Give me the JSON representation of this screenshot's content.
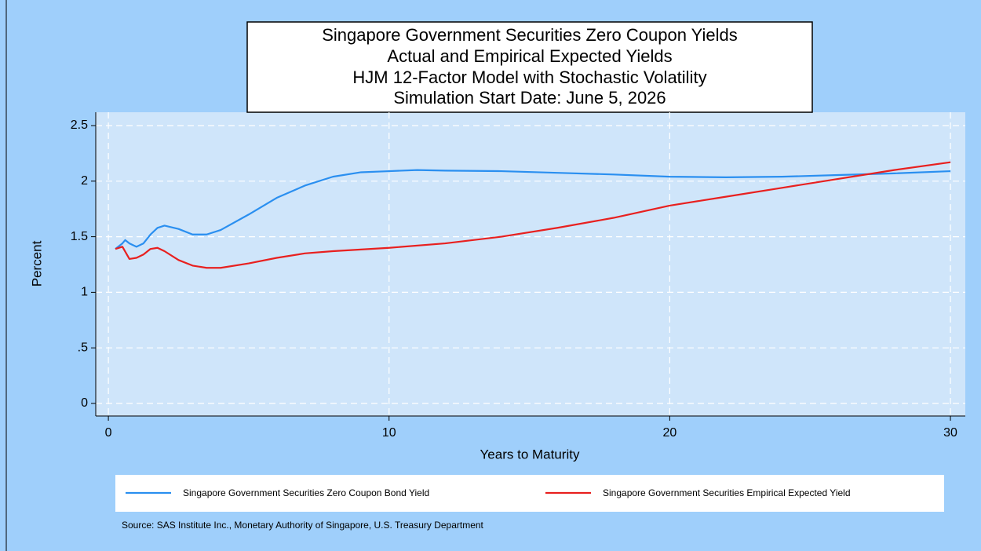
{
  "chart_data": {
    "type": "line",
    "title": [
      "Singapore Government Securities Zero Coupon Yields",
      "Actual and Empirical Expected Yields",
      "HJM 12-Factor Model with Stochastic Volatility",
      "Simulation Start Date: June 5, 2026"
    ],
    "x_label": "Years to Maturity",
    "y_label": "Percent",
    "note": "Source: SAS Institute Inc., Monetary Authority of Singapore, U.S. Treasury Department",
    "xlim": [
      -0.45,
      30.53
    ],
    "ylim": [
      -0.113,
      2.62
    ],
    "xticks": [
      0,
      10,
      20,
      30
    ],
    "yticks": [
      0,
      {
        "value": 0.5,
        "label": ".5"
      },
      1,
      1.5,
      2,
      2.5
    ],
    "grid": true,
    "series": [
      {
        "name": "Singapore Government Securities Zero Coupon Bond Yield",
        "color": "#2a8ff0",
        "x": [
          0.25,
          0.5,
          0.6,
          0.75,
          1,
          1.25,
          1.5,
          1.75,
          2,
          2.5,
          3,
          3.5,
          4,
          5,
          6,
          7,
          8,
          9,
          10,
          11,
          12,
          14,
          16,
          18,
          20,
          22,
          24,
          26,
          28,
          30
        ],
        "values": [
          1.39,
          1.44,
          1.47,
          1.44,
          1.41,
          1.44,
          1.52,
          1.58,
          1.6,
          1.57,
          1.52,
          1.52,
          1.56,
          1.7,
          1.85,
          1.96,
          2.04,
          2.08,
          2.09,
          2.1,
          2.095,
          2.09,
          2.075,
          2.06,
          2.04,
          2.035,
          2.04,
          2.055,
          2.07,
          2.09
        ]
      },
      {
        "name": "Singapore Government Securities Empirical Expected Yield",
        "color": "#e8201f",
        "x": [
          0.25,
          0.5,
          0.75,
          1,
          1.25,
          1.5,
          1.75,
          2,
          2.5,
          3,
          3.5,
          4,
          5,
          6,
          7,
          8,
          9,
          10,
          12,
          14,
          16,
          18,
          20,
          22,
          24,
          26,
          28,
          30
        ],
        "values": [
          1.39,
          1.41,
          1.3,
          1.31,
          1.34,
          1.39,
          1.4,
          1.37,
          1.29,
          1.24,
          1.22,
          1.22,
          1.26,
          1.31,
          1.35,
          1.37,
          1.385,
          1.4,
          1.44,
          1.5,
          1.58,
          1.67,
          1.78,
          1.86,
          1.94,
          2.02,
          2.1,
          2.17
        ]
      }
    ]
  }
}
